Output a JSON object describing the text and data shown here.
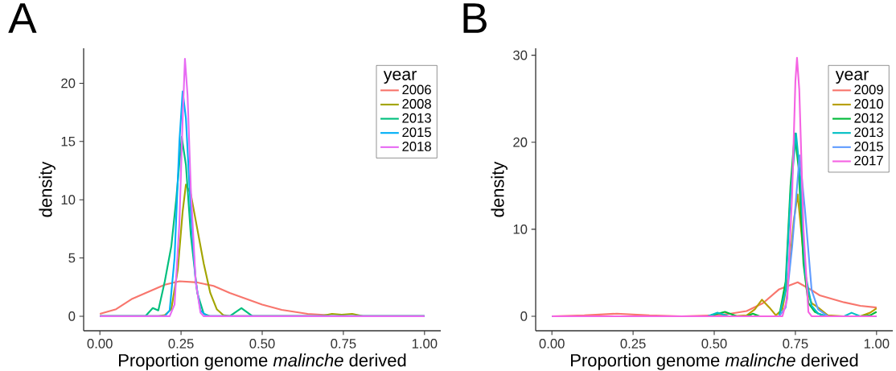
{
  "chart_data": [
    {
      "type": "line",
      "title": "A",
      "xlabel": "Proportion genome *malinche* derived",
      "ylabel": "density",
      "legend_title": "year",
      "legend": "top right",
      "xlim": [
        -0.05,
        1.05
      ],
      "ylim": [
        -1.25,
        23
      ],
      "xticks": [
        {
          "value": 0,
          "label": "0.00"
        },
        {
          "value": 0.25,
          "label": "0.25"
        },
        {
          "value": 0.5,
          "label": "0.50"
        },
        {
          "value": 0.75,
          "label": "0.75"
        },
        {
          "value": 1,
          "label": "1.00"
        }
      ],
      "yticks": [
        0,
        5,
        10,
        15,
        20
      ],
      "series": [
        {
          "name": "2006",
          "color": "#f8766d",
          "x": [
            0,
            0.05,
            0.1,
            0.15,
            0.2,
            0.245,
            0.3,
            0.35,
            0.4,
            0.45,
            0.5,
            0.56,
            0.64,
            0.7
          ],
          "values": [
            0.2,
            0.6,
            1.5,
            2.1,
            2.7,
            3.0,
            2.9,
            2.6,
            2.0,
            1.5,
            1.0,
            0.55,
            0.2,
            0.1
          ]
        },
        {
          "name": "2008",
          "color": "#a3a500",
          "x": [
            0,
            0.18,
            0.2,
            0.22,
            0.24,
            0.255,
            0.265,
            0.28,
            0.3,
            0.32,
            0.34,
            0.36,
            0.38,
            0.4,
            0.68,
            0.715,
            0.745,
            0.777,
            0.81,
            1.0
          ],
          "values": [
            0,
            0,
            0.1,
            0.6,
            4,
            9,
            11.3,
            10.5,
            7.5,
            4.5,
            2,
            0.6,
            0.1,
            0,
            0,
            0.2,
            0.12,
            0.2,
            0,
            0
          ]
        },
        {
          "name": "2013",
          "color": "#00bf7d",
          "x": [
            0,
            0.14,
            0.163,
            0.18,
            0.2,
            0.22,
            0.235,
            0.252,
            0.265,
            0.28,
            0.3,
            0.32,
            0.34,
            0.4,
            0.436,
            0.47,
            1.0
          ],
          "values": [
            0,
            0,
            0.7,
            0.5,
            3.0,
            6,
            10,
            15.4,
            13,
            7,
            2,
            0.2,
            0,
            0,
            0.7,
            0,
            0
          ]
        },
        {
          "name": "2015",
          "color": "#00b0f6",
          "x": [
            0,
            0.2,
            0.215,
            0.23,
            0.245,
            0.255,
            0.265,
            0.28,
            0.295,
            0.31,
            0.33,
            1.0
          ],
          "values": [
            0,
            0,
            0.5,
            5,
            15,
            19.3,
            17,
            9,
            3,
            0.5,
            0,
            0
          ]
        },
        {
          "name": "2018",
          "color": "#e76bf3",
          "x": [
            0,
            0.215,
            0.23,
            0.245,
            0.255,
            0.262,
            0.27,
            0.28,
            0.295,
            0.31,
            0.32,
            1.0
          ],
          "values": [
            0,
            0,
            1,
            8,
            17,
            22.1,
            19,
            11,
            3,
            0.3,
            0,
            0
          ]
        }
      ]
    },
    {
      "type": "line",
      "title": "B",
      "xlabel": "Proportion genome *malinche* derived",
      "ylabel": "density",
      "legend_title": "year",
      "legend": "top right",
      "xlim": [
        -0.05,
        1.05
      ],
      "ylim": [
        -1.67,
        30.8
      ],
      "xticks": [
        {
          "value": 0,
          "label": "0.00"
        },
        {
          "value": 0.25,
          "label": "0.25"
        },
        {
          "value": 0.5,
          "label": "0.50"
        },
        {
          "value": 0.75,
          "label": "0.75"
        },
        {
          "value": 1,
          "label": "1.00"
        }
      ],
      "yticks": [
        0,
        10,
        20,
        30
      ],
      "series": [
        {
          "name": "2009",
          "color": "#f8766d",
          "x": [
            0,
            0.1,
            0.2,
            0.3,
            0.4,
            0.5,
            0.55,
            0.6,
            0.65,
            0.7,
            0.757,
            0.8,
            0.825,
            0.9,
            0.95,
            1.0
          ],
          "values": [
            0,
            0.1,
            0.3,
            0.1,
            0,
            0.1,
            0.3,
            0.6,
            1.5,
            3.1,
            3.9,
            3.0,
            2.4,
            1.6,
            1.2,
            1
          ]
        },
        {
          "name": "2010",
          "color": "#b79f00",
          "x": [
            0,
            0.55,
            0.6,
            0.625,
            0.647,
            0.67,
            0.69,
            0.71,
            0.73,
            0.745,
            0.757,
            0.77,
            0.785,
            0.8,
            0.82,
            0.85,
            0.9,
            0.95,
            0.98,
            1.0
          ],
          "values": [
            0,
            0,
            0.1,
            0.8,
            1.9,
            1.0,
            0.1,
            0.8,
            5,
            11,
            14,
            9,
            3,
            1.5,
            1.0,
            0.1,
            0,
            0,
            0.4,
            0.9
          ]
        },
        {
          "name": "2012",
          "color": "#00ba38",
          "x": [
            0,
            0.48,
            0.533,
            0.57,
            0.6,
            0.619,
            0.64,
            0.7,
            0.72,
            0.735,
            0.748,
            0.76,
            0.775,
            0.79,
            0.81,
            0.84,
            0.95,
            0.98,
            1.0
          ],
          "values": [
            0,
            0,
            0.5,
            0,
            0,
            0.3,
            0,
            0,
            4,
            15,
            21,
            17,
            6,
            1.5,
            0.5,
            0,
            0,
            0.1,
            0.5
          ]
        },
        {
          "name": "2013",
          "color": "#00bfc4",
          "x": [
            0,
            0.48,
            0.51,
            0.545,
            0.7,
            0.72,
            0.735,
            0.752,
            0.765,
            0.78,
            0.8,
            0.82,
            0.85,
            0.9,
            0.923,
            0.95,
            1.0
          ],
          "values": [
            0,
            0,
            0.4,
            0,
            0,
            3,
            14,
            21,
            16,
            5,
            1.2,
            0.3,
            0,
            0,
            0.4,
            0,
            0
          ]
        },
        {
          "name": "2015",
          "color": "#619cff",
          "x": [
            0,
            0.7,
            0.72,
            0.74,
            0.763,
            0.78,
            0.8,
            0.82,
            0.85,
            1.0
          ],
          "values": [
            0,
            0,
            1,
            8,
            18.5,
            12,
            3,
            0.8,
            0,
            0
          ]
        },
        {
          "name": "2017",
          "color": "#f564e3",
          "x": [
            0,
            0.71,
            0.725,
            0.74,
            0.75,
            0.755,
            0.762,
            0.775,
            0.79,
            0.8,
            1.0
          ],
          "values": [
            0,
            0,
            2,
            14,
            27,
            29.7,
            26,
            10,
            0.5,
            0,
            0
          ]
        }
      ]
    }
  ]
}
